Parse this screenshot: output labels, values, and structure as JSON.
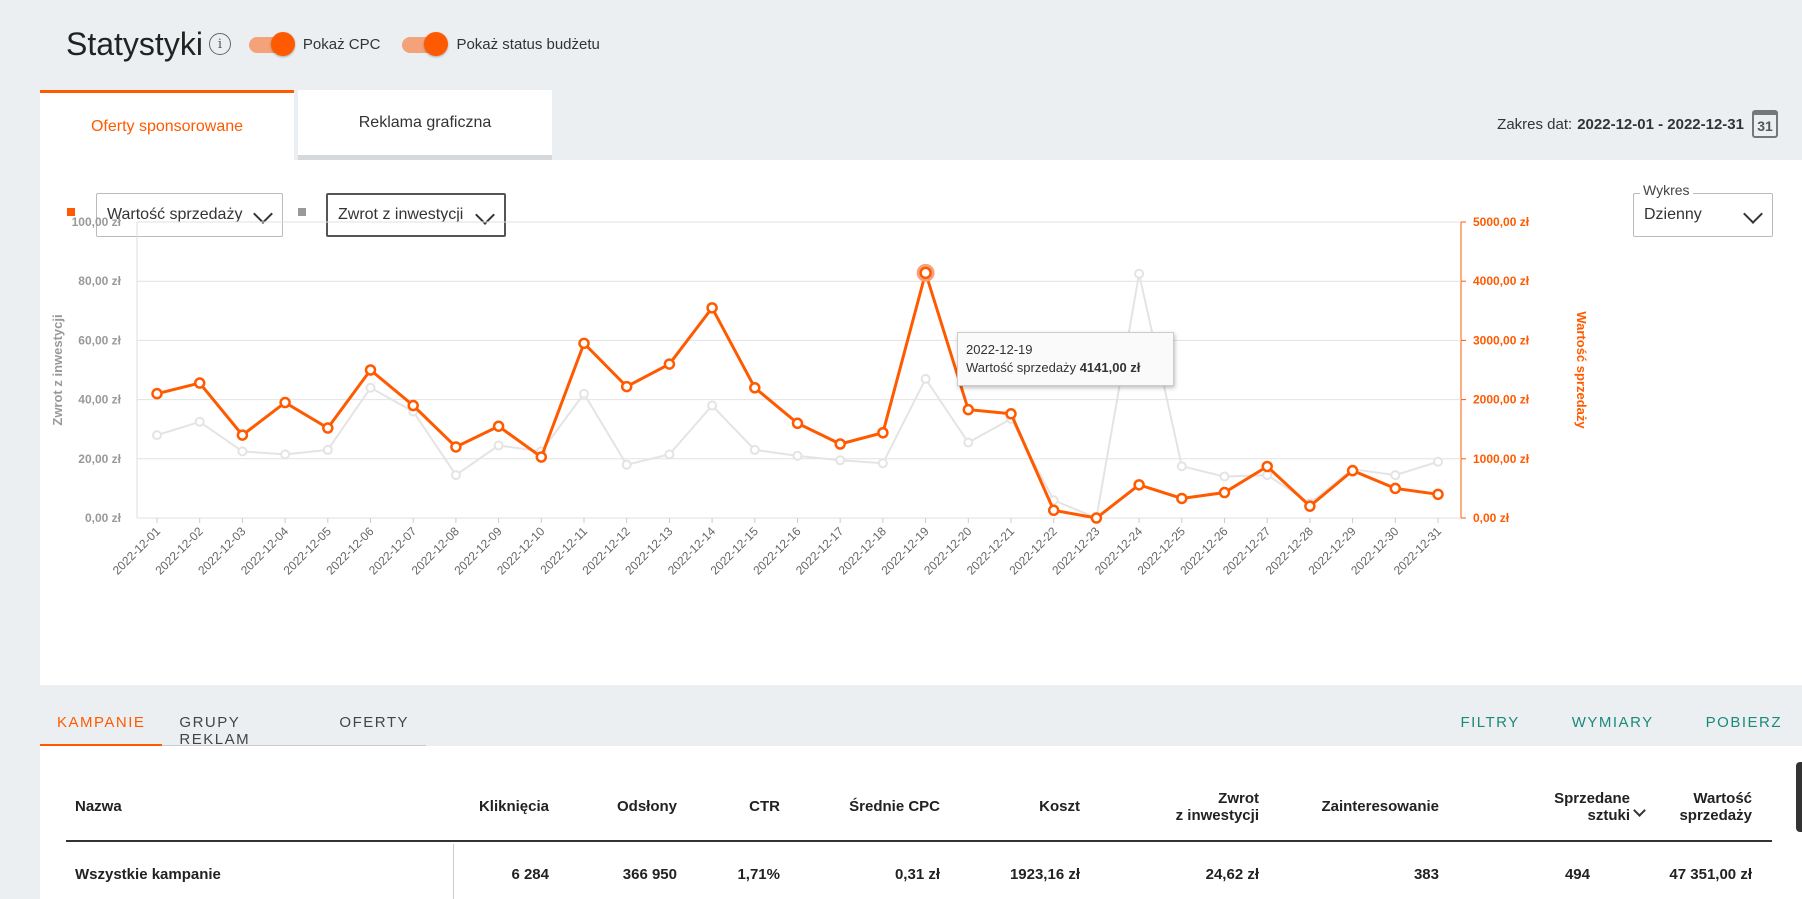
{
  "header": {
    "title": "Statystyki",
    "info_glyph": "i",
    "toggle_cpc_label": "Pokaż CPC",
    "toggle_cpc_on": true,
    "toggle_budget_label": "Pokaż status budżetu",
    "toggle_budget_on": true
  },
  "tabs": [
    {
      "label": "Oferty sponsorowane",
      "active": true
    },
    {
      "label": "Reklama graficzna",
      "active": false
    }
  ],
  "date_range": {
    "label": "Zakres dat:",
    "value": "2022-12-01 - 2022-12-31",
    "calendar_glyph": "31"
  },
  "metric_selectors": {
    "primary": {
      "value": "Wartość sprzedaży",
      "color": "#ff5a00"
    },
    "secondary": {
      "value": "Zwrot z inwestycji",
      "color": "#999999"
    }
  },
  "chart_mode": {
    "label": "Wykres",
    "value": "Dzienny"
  },
  "tooltip": {
    "date": "2022-12-19",
    "label": "Wartość sprzedaży",
    "value": "4141,00 zł"
  },
  "chart_data": {
    "type": "line",
    "x": [
      "2022-12-01",
      "2022-12-02",
      "2022-12-03",
      "2022-12-04",
      "2022-12-05",
      "2022-12-06",
      "2022-12-07",
      "2022-12-08",
      "2022-12-09",
      "2022-12-10",
      "2022-12-11",
      "2022-12-12",
      "2022-12-13",
      "2022-12-14",
      "2022-12-15",
      "2022-12-16",
      "2022-12-17",
      "2022-12-18",
      "2022-12-19",
      "2022-12-20",
      "2022-12-21",
      "2022-12-22",
      "2022-12-23",
      "2022-12-24",
      "2022-12-25",
      "2022-12-26",
      "2022-12-27",
      "2022-12-28",
      "2022-12-29",
      "2022-12-30",
      "2022-12-31"
    ],
    "series": [
      {
        "name": "Wartość sprzedaży",
        "axis": "right",
        "color": "#ff5a00",
        "values": [
          2100,
          2280,
          1400,
          1950,
          1520,
          2500,
          1900,
          1200,
          1550,
          1030,
          2950,
          2220,
          2600,
          3550,
          2200,
          1600,
          1250,
          1440,
          4141,
          1830,
          1760,
          130,
          0,
          560,
          330,
          430,
          870,
          200,
          800,
          500,
          400
        ]
      },
      {
        "name": "Zwrot z inwestycji",
        "axis": "left",
        "color": "#e4e4e4",
        "values": [
          28,
          32.5,
          22.5,
          21.5,
          23,
          44,
          36,
          14.5,
          24.5,
          22.5,
          42,
          18,
          21.5,
          38,
          23,
          21,
          19.5,
          18.5,
          47,
          25.5,
          33.5,
          6,
          0,
          82.5,
          17.5,
          14,
          14.5,
          5,
          16.5,
          14.5,
          19
        ]
      }
    ],
    "yleft": {
      "label": "Zwrot z inwestycji",
      "ticks": [
        "0,00 zł",
        "20,00 zł",
        "40,00 zł",
        "60,00 zł",
        "80,00 zł",
        "100,00 zł"
      ],
      "range": [
        0,
        100
      ]
    },
    "yright": {
      "label": "Wartość sprzedaży",
      "ticks": [
        "0,00 zł",
        "1000,00 zł",
        "2000,00 zł",
        "3000,00 zł",
        "4000,00 zł",
        "5000,00 zł"
      ],
      "range": [
        0,
        5000
      ]
    },
    "grid": true,
    "highlight_index": 18
  },
  "bottom_tabs": [
    {
      "label": "KAMPANIE",
      "active": true
    },
    {
      "label": "GRUPY REKLAM",
      "active": false
    },
    {
      "label": "OFERTY",
      "active": false
    }
  ],
  "actions": [
    "FILTRY",
    "WYMIARY",
    "POBIERZ"
  ],
  "table": {
    "headers": {
      "name": "Nazwa",
      "clicks": "Kliknięcia",
      "views": "Odsłony",
      "ctr": "CTR",
      "avg_cpc": "Średnie CPC",
      "cost": "Koszt",
      "roi_line1": "Zwrot",
      "roi_line2": "z inwestycji",
      "interest": "Zainteresowanie",
      "sold_line1": "Sprzedane",
      "sold_line2": "sztuki",
      "sales_line1": "Wartość",
      "sales_line2": "sprzedaży"
    },
    "row": {
      "name": "Wszystkie kampanie",
      "clicks": "6 284",
      "views": "366 950",
      "ctr": "1,71%",
      "avg_cpc": "0,31 zł",
      "cost": "1923,16 zł",
      "roi": "24,62 zł",
      "interest": "383",
      "sold": "494",
      "sales": "47 351,00 zł"
    }
  }
}
